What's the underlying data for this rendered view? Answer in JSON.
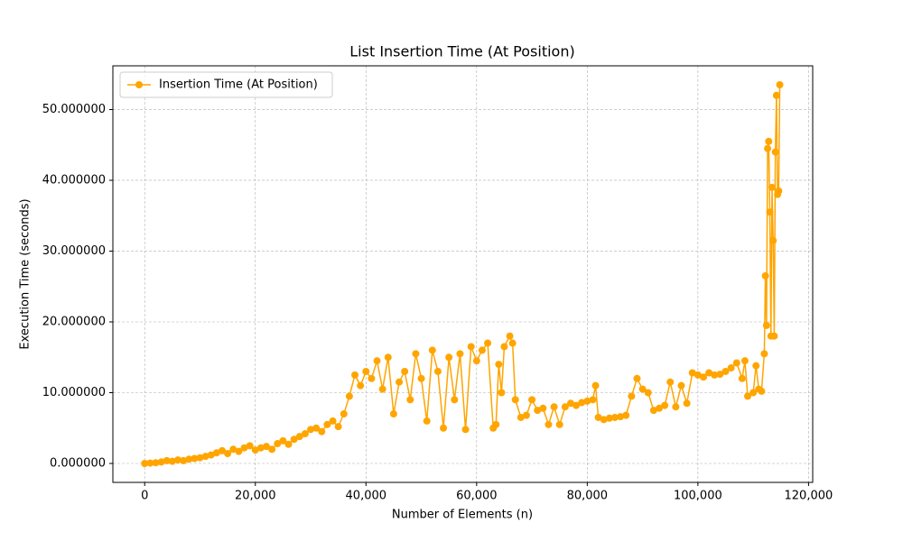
{
  "chart_data": {
    "type": "line",
    "title": "List Insertion Time (At Position)",
    "x_label": "Number of Elements (n)",
    "y_label": "Execution Time (seconds)",
    "grid": true,
    "legend": "upper left",
    "xlim": [
      -5750,
      120750
    ],
    "ylim": [
      -2.675,
      56.175
    ],
    "xticks": [
      0,
      {
        "value": 20000,
        "label": "20,000"
      },
      {
        "value": 40000,
        "label": "40,000"
      },
      {
        "value": 60000,
        "label": "60,000"
      },
      {
        "value": 80000,
        "label": "80,000"
      },
      {
        "value": 100000,
        "label": "100,000"
      },
      {
        "value": 120000,
        "label": "120,000"
      }
    ],
    "yticks": [
      {
        "value": 0,
        "label": "0.000000"
      },
      {
        "value": 10,
        "label": "10.000000"
      },
      {
        "value": 20,
        "label": "20.000000"
      },
      {
        "value": 30,
        "label": "30.000000"
      },
      {
        "value": 40,
        "label": "40.000000"
      },
      {
        "value": 50,
        "label": "50.000000"
      }
    ],
    "x": [
      0,
      1000,
      2000,
      3000,
      4000,
      5000,
      6000,
      7000,
      8000,
      9000,
      10000,
      11000,
      12000,
      13000,
      14000,
      15000,
      16000,
      17000,
      18000,
      19000,
      20000,
      21000,
      22000,
      23000,
      24000,
      25000,
      26000,
      27000,
      28000,
      29000,
      30000,
      31000,
      32000,
      33000,
      34000,
      35000,
      36000,
      37000,
      38000,
      39000,
      40000,
      41000,
      42000,
      43000,
      44000,
      45000,
      46000,
      47000,
      48000,
      49000,
      50000,
      51000,
      52000,
      53000,
      54000,
      55000,
      56000,
      57000,
      58000,
      59000,
      60000,
      61000,
      62000,
      63000,
      63500,
      64000,
      64500,
      65000,
      66000,
      66500,
      67000,
      68000,
      69000,
      70000,
      71000,
      72000,
      73000,
      74000,
      75000,
      76000,
      77000,
      78000,
      79000,
      80000,
      81000,
      81500,
      82000,
      83000,
      84000,
      85000,
      86000,
      87000,
      88000,
      89000,
      90000,
      91000,
      92000,
      93000,
      94000,
      95000,
      96000,
      97000,
      98000,
      99000,
      100000,
      101000,
      102000,
      103000,
      104000,
      105000,
      106000,
      107000,
      108000,
      108500,
      109000,
      110000,
      110500,
      111000,
      111500,
      112000,
      112200,
      112400,
      112600,
      112800,
      113000,
      113200,
      113400,
      113600,
      113800,
      114000,
      114200,
      114400,
      114600,
      114800
    ],
    "series": [
      {
        "name": "Insertion Time (At Position)",
        "color": "#ffa500",
        "values": [
          0,
          0.05,
          0.1,
          0.2,
          0.4,
          0.3,
          0.5,
          0.4,
          0.6,
          0.7,
          0.8,
          1.0,
          1.2,
          1.5,
          1.8,
          1.4,
          2.0,
          1.7,
          2.2,
          2.5,
          1.9,
          2.2,
          2.4,
          2.0,
          2.8,
          3.2,
          2.7,
          3.4,
          3.8,
          4.2,
          4.8,
          5.0,
          4.5,
          5.5,
          6.0,
          5.2,
          7.0,
          9.5,
          12.5,
          11.0,
          13.0,
          12.0,
          14.5,
          10.5,
          15.0,
          7.0,
          11.5,
          13.0,
          9.0,
          15.5,
          12.0,
          6.0,
          16.0,
          13.0,
          5.0,
          15.0,
          9.0,
          15.5,
          4.8,
          16.5,
          14.5,
          16.0,
          17.0,
          5.0,
          5.5,
          14.0,
          10.0,
          16.5,
          18.0,
          17.0,
          9.0,
          6.5,
          6.8,
          9.0,
          7.5,
          7.8,
          5.5,
          8.0,
          5.5,
          8.0,
          8.5,
          8.2,
          8.6,
          8.8,
          9.0,
          11.0,
          6.5,
          6.2,
          6.4,
          6.5,
          6.6,
          6.8,
          9.5,
          12.0,
          10.5,
          10.0,
          7.5,
          7.8,
          8.2,
          11.5,
          8.0,
          11.0,
          8.5,
          12.8,
          12.5,
          12.2,
          12.8,
          12.5,
          12.6,
          13.0,
          13.5,
          14.2,
          12.0,
          14.5,
          9.5,
          10.0,
          13.8,
          10.5,
          10.2,
          15.5,
          26.5,
          19.5,
          44.5,
          45.5,
          35.5,
          18.0,
          39.0,
          31.5,
          18.0,
          44.0,
          52.0,
          38.0,
          38.5,
          53.5
        ]
      }
    ]
  }
}
